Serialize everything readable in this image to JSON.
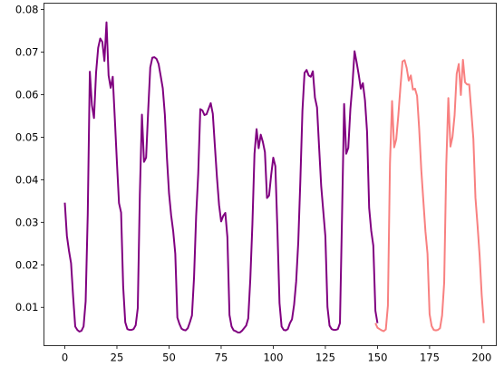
{
  "chart_data": {
    "type": "line",
    "title": "",
    "xlabel": "",
    "ylabel": "",
    "xlim": [
      -10,
      207
    ],
    "ylim": [
      0.001,
      0.0815
    ],
    "x_ticks": [
      0,
      25,
      50,
      75,
      100,
      125,
      150,
      175,
      200
    ],
    "y_ticks": [
      0.01,
      0.02,
      0.03,
      0.04,
      0.05,
      0.06,
      0.07,
      0.08
    ],
    "x_tick_labels": [
      "0",
      "25",
      "50",
      "75",
      "100",
      "125",
      "150",
      "175",
      "200"
    ],
    "y_tick_labels": [
      "0.01",
      "0.02",
      "0.03",
      "0.04",
      "0.05",
      "0.06",
      "0.07",
      "0.08"
    ],
    "grid": false,
    "series": [
      {
        "color": "#800080",
        "x_start": 0,
        "values": [
          0.0346,
          0.0268,
          0.0233,
          0.0204,
          0.0125,
          0.0055,
          0.0047,
          0.0043,
          0.0045,
          0.0055,
          0.0114,
          0.0318,
          0.0654,
          0.0575,
          0.0545,
          0.0652,
          0.071,
          0.0732,
          0.0724,
          0.0679,
          0.077,
          0.0645,
          0.0616,
          0.0642,
          0.0543,
          0.0441,
          0.0345,
          0.0323,
          0.0149,
          0.0065,
          0.0049,
          0.0047,
          0.0047,
          0.0049,
          0.0058,
          0.0098,
          0.0366,
          0.0553,
          0.0442,
          0.0452,
          0.0563,
          0.0664,
          0.0687,
          0.0688,
          0.0684,
          0.0672,
          0.0644,
          0.0615,
          0.0553,
          0.0451,
          0.0368,
          0.0317,
          0.0279,
          0.0226,
          0.0076,
          0.0061,
          0.005,
          0.0047,
          0.0046,
          0.0051,
          0.0065,
          0.0081,
          0.0171,
          0.0314,
          0.0414,
          0.0566,
          0.0563,
          0.0552,
          0.0554,
          0.0567,
          0.058,
          0.0555,
          0.0479,
          0.0405,
          0.0341,
          0.0302,
          0.0315,
          0.0322,
          0.0265,
          0.0082,
          0.0055,
          0.0046,
          0.0044,
          0.0041,
          0.0041,
          0.0045,
          0.0051,
          0.0057,
          0.0074,
          0.0167,
          0.0296,
          0.0461,
          0.0519,
          0.0474,
          0.0506,
          0.0489,
          0.0465,
          0.0357,
          0.0363,
          0.0411,
          0.0452,
          0.0432,
          0.0282,
          0.011,
          0.0055,
          0.0047,
          0.0046,
          0.0049,
          0.0063,
          0.0072,
          0.0106,
          0.0161,
          0.0253,
          0.0398,
          0.0562,
          0.0651,
          0.0658,
          0.0645,
          0.0642,
          0.0655,
          0.0593,
          0.057,
          0.0476,
          0.0385,
          0.0326,
          0.0267,
          0.0101,
          0.0057,
          0.0049,
          0.0047,
          0.0047,
          0.0049,
          0.0063,
          0.0315,
          0.0578,
          0.0461,
          0.0475,
          0.0566,
          0.0624,
          0.0702,
          0.0676,
          0.0647,
          0.0614,
          0.0627,
          0.0587,
          0.0513,
          0.0334,
          0.028,
          0.0245,
          0.0092,
          0.0063
        ]
      },
      {
        "color": "#f88080",
        "x_start": 149,
        "values": [
          0.0063,
          0.0052,
          0.0049,
          0.0046,
          0.0044,
          0.0048,
          0.0104,
          0.0439,
          0.0585,
          0.0476,
          0.0495,
          0.0551,
          0.0617,
          0.0678,
          0.0681,
          0.0663,
          0.0633,
          0.0645,
          0.0612,
          0.0614,
          0.0597,
          0.052,
          0.0424,
          0.0351,
          0.0279,
          0.0226,
          0.0084,
          0.0056,
          0.0047,
          0.0046,
          0.0047,
          0.0051,
          0.0081,
          0.0158,
          0.0434,
          0.0592,
          0.0478,
          0.0501,
          0.0552,
          0.0649,
          0.0672,
          0.0599,
          0.0682,
          0.0629,
          0.0624,
          0.0624,
          0.0561,
          0.0496,
          0.0358,
          0.0293,
          0.0222,
          0.0129,
          0.0063
        ]
      }
    ]
  }
}
